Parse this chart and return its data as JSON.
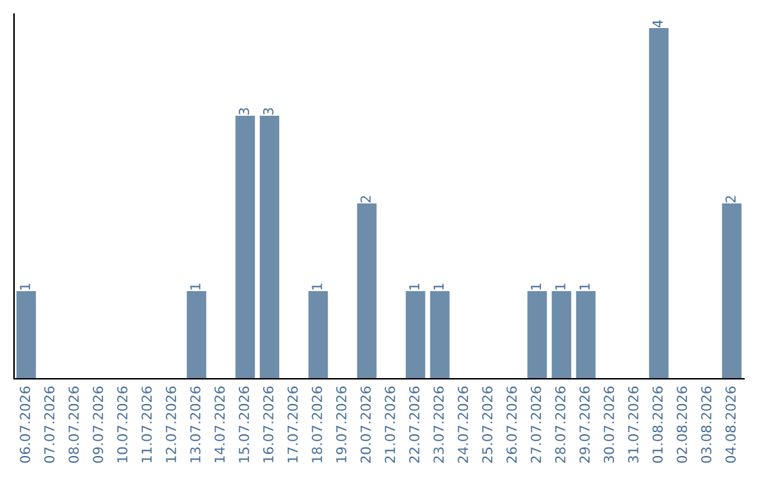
{
  "chart_data": {
    "type": "bar",
    "categories": [
      "06.07.2026",
      "07.07.2026",
      "08.07.2026",
      "09.07.2026",
      "10.07.2026",
      "11.07.2026",
      "12.07.2026",
      "13.07.2026",
      "14.07.2026",
      "15.07.2026",
      "16.07.2026",
      "17.07.2026",
      "18.07.2026",
      "19.07.2026",
      "20.07.2026",
      "21.07.2026",
      "22.07.2026",
      "23.07.2026",
      "24.07.2026",
      "25.07.2026",
      "26.07.2026",
      "27.07.2026",
      "28.07.2026",
      "29.07.2026",
      "30.07.2026",
      "31.07.2026",
      "01.08.2026",
      "02.08.2026",
      "03.08.2026",
      "04.08.2026"
    ],
    "values": [
      1,
      0,
      0,
      0,
      0,
      0,
      0,
      1,
      0,
      3,
      3,
      0,
      1,
      0,
      2,
      0,
      1,
      1,
      0,
      0,
      0,
      1,
      1,
      1,
      0,
      0,
      4,
      0,
      0,
      2
    ],
    "value_labels": [
      "1",
      null,
      null,
      null,
      null,
      null,
      null,
      "1",
      null,
      "3",
      "3",
      null,
      "1",
      null,
      "2",
      null,
      "1",
      "1",
      null,
      null,
      null,
      "1",
      "1",
      "1",
      null,
      null,
      "4",
      null,
      null,
      "2"
    ],
    "color": "#6d8dab",
    "tick_labels": "x",
    "grid": false,
    "legend": false
  }
}
